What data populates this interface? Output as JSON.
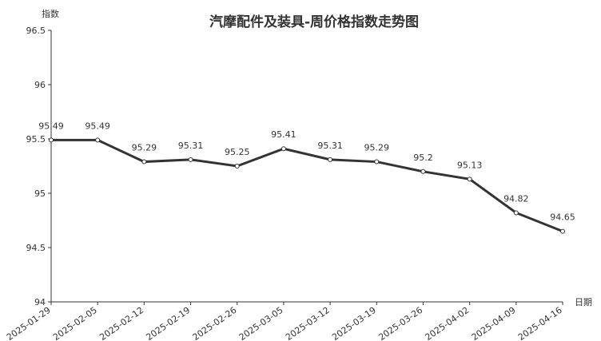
{
  "chart_data": {
    "type": "line",
    "title": "汽摩配件及装具-周价格指数走势图",
    "y_label": "指数",
    "x_label": "日期",
    "x": [
      "2025-01-29",
      "2025-02-05",
      "2025-02-12",
      "2025-02-19",
      "2025-02-26",
      "2025-03-05",
      "2025-03-12",
      "2025-03-19",
      "2025-03-26",
      "2025-04-02",
      "2025-04-09",
      "2025-04-16"
    ],
    "series": [
      {
        "name": "指数",
        "color": "#333333",
        "values": [
          95.49,
          95.49,
          95.29,
          95.31,
          95.25,
          95.41,
          95.31,
          95.29,
          95.2,
          95.13,
          94.82,
          94.65
        ]
      }
    ],
    "ylim": [
      94,
      96.5
    ],
    "yticks": [
      94,
      94.5,
      95,
      95.5,
      96,
      96.5
    ],
    "grid": false,
    "legend": false
  }
}
